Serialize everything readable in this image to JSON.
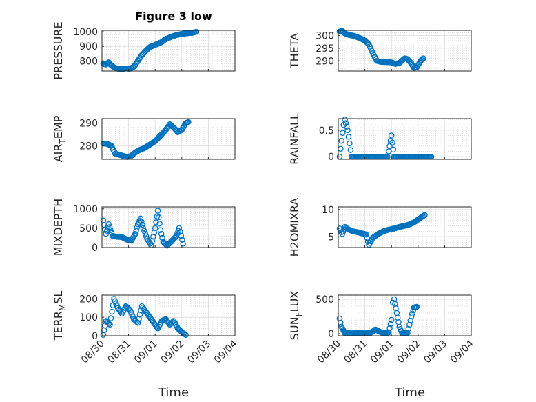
{
  "title": "Figure 3 low",
  "x_ticks": [
    "08/30",
    "08/31",
    "09/01",
    "09/02",
    "09/03",
    "09/04"
  ],
  "x_label": "Time",
  "colors": {
    "marker": "#0072bd",
    "axis": "#262626",
    "grid": "#dcdcdc"
  },
  "chart_data": [
    {
      "type": "scatter",
      "ylabel": "PRESSURE",
      "ylabel_sub": "",
      "xlim": [
        0,
        5
      ],
      "ylim": [
        730,
        1010
      ],
      "yticks": [
        800,
        900,
        1000
      ],
      "segments": [
        [
          0.05,
          780
        ],
        [
          0.15,
          775
        ],
        [
          0.25,
          790
        ],
        [
          0.35,
          770
        ],
        [
          0.45,
          755
        ],
        [
          0.6,
          745
        ],
        [
          0.75,
          742
        ],
        [
          0.9,
          748
        ],
        [
          1.05,
          745
        ],
        [
          1.2,
          760
        ],
        [
          1.35,
          800
        ],
        [
          1.5,
          840
        ],
        [
          1.65,
          870
        ],
        [
          1.8,
          895
        ],
        [
          2.0,
          910
        ],
        [
          2.2,
          925
        ],
        [
          2.4,
          950
        ],
        [
          2.6,
          965
        ],
        [
          2.8,
          978
        ],
        [
          3.0,
          985
        ],
        [
          3.2,
          990
        ],
        [
          3.4,
          993
        ],
        [
          3.55,
          1000
        ]
      ]
    },
    {
      "type": "scatter",
      "ylabel": "THETA",
      "ylabel_sub": "",
      "xlim": [
        0,
        5
      ],
      "ylim": [
        286,
        302
      ],
      "yticks": [
        290,
        295,
        300
      ],
      "segments": [
        [
          0.05,
          301.5
        ],
        [
          0.15,
          301.8
        ],
        [
          0.25,
          300.8
        ],
        [
          0.4,
          300.2
        ],
        [
          0.6,
          299.8
        ],
        [
          0.8,
          299.0
        ],
        [
          1.0,
          298.0
        ],
        [
          1.15,
          296.5
        ],
        [
          1.3,
          293
        ],
        [
          1.45,
          290
        ],
        [
          1.6,
          289.6
        ],
        [
          1.8,
          289.5
        ],
        [
          2.0,
          289.4
        ],
        [
          2.15,
          288.8
        ],
        [
          2.3,
          289.2
        ],
        [
          2.5,
          291
        ],
        [
          2.6,
          290.7
        ],
        [
          2.75,
          289
        ],
        [
          2.85,
          287.2
        ],
        [
          2.95,
          287.5
        ],
        [
          3.1,
          290
        ],
        [
          3.2,
          291
        ]
      ]
    },
    {
      "type": "scatter",
      "ylabel": "AIR",
      "ylabel_sub": "T",
      "ylabel_suffix": "EMP",
      "xlim": [
        0,
        5
      ],
      "ylim": [
        274,
        292
      ],
      "yticks": [
        280,
        290
      ],
      "segments": [
        [
          0.05,
          281
        ],
        [
          0.2,
          280.8
        ],
        [
          0.35,
          280
        ],
        [
          0.5,
          276.5
        ],
        [
          0.65,
          276
        ],
        [
          0.8,
          275.5
        ],
        [
          0.95,
          275
        ],
        [
          1.1,
          275.5
        ],
        [
          1.25,
          277
        ],
        [
          1.4,
          278
        ],
        [
          1.6,
          279
        ],
        [
          1.8,
          280.5
        ],
        [
          2.0,
          282
        ],
        [
          2.2,
          284.5
        ],
        [
          2.4,
          287
        ],
        [
          2.55,
          289.5
        ],
        [
          2.7,
          288
        ],
        [
          2.85,
          286
        ],
        [
          3.0,
          287
        ],
        [
          3.15,
          290
        ],
        [
          3.25,
          290.5
        ]
      ]
    },
    {
      "type": "scatter",
      "ylabel": "RAINFALL",
      "ylabel_sub": "",
      "xlim": [
        0,
        5
      ],
      "ylim": [
        -0.05,
        0.72
      ],
      "yticks": [
        0,
        0.5
      ],
      "segments": [
        [
          0.05,
          0
        ],
        [
          0.2,
          0.6
        ],
        [
          0.25,
          0.7
        ],
        [
          0.35,
          0.5
        ],
        [
          0.5,
          0
        ],
        [
          1.0,
          0
        ],
        [
          1.5,
          0
        ],
        [
          1.85,
          0
        ],
        [
          1.9,
          0.1
        ],
        [
          2.0,
          0.4
        ],
        [
          2.1,
          0
        ],
        [
          2.5,
          0
        ],
        [
          3.0,
          0
        ],
        [
          3.5,
          0
        ]
      ]
    },
    {
      "type": "scatter",
      "ylabel": "MIXDEPTH",
      "ylabel_sub": "",
      "xlim": [
        0,
        5
      ],
      "ylim": [
        0,
        1050
      ],
      "yticks": [
        0,
        500,
        1000
      ],
      "segments": [
        [
          0.05,
          700
        ],
        [
          0.15,
          350
        ],
        [
          0.25,
          600
        ],
        [
          0.4,
          300
        ],
        [
          0.55,
          280
        ],
        [
          0.75,
          270
        ],
        [
          0.95,
          200
        ],
        [
          1.1,
          180
        ],
        [
          1.25,
          350
        ],
        [
          1.35,
          600
        ],
        [
          1.45,
          750
        ],
        [
          1.55,
          500
        ],
        [
          1.7,
          220
        ],
        [
          1.85,
          60
        ],
        [
          2.0,
          500
        ],
        [
          2.1,
          950
        ],
        [
          2.2,
          450
        ],
        [
          2.3,
          150
        ],
        [
          2.45,
          50
        ],
        [
          2.6,
          150
        ],
        [
          2.8,
          300
        ],
        [
          2.9,
          500
        ],
        [
          3.05,
          100
        ]
      ]
    },
    {
      "type": "scatter",
      "ylabel": "H2OMIXRA",
      "ylabel_sub": "",
      "xlim": [
        0,
        5
      ],
      "ylim": [
        3,
        10.5
      ],
      "yticks": [
        5,
        10
      ],
      "segments": [
        [
          0.05,
          6.5
        ],
        [
          0.15,
          5.5
        ],
        [
          0.25,
          6.8
        ],
        [
          0.4,
          6.3
        ],
        [
          0.55,
          6.0
        ],
        [
          0.75,
          5.8
        ],
        [
          0.9,
          5.6
        ],
        [
          1.05,
          5.4
        ],
        [
          1.15,
          3.5
        ],
        [
          1.3,
          4.8
        ],
        [
          1.5,
          5.5
        ],
        [
          1.7,
          6.0
        ],
        [
          1.9,
          6.3
        ],
        [
          2.1,
          6.5
        ],
        [
          2.3,
          6.8
        ],
        [
          2.5,
          7.0
        ],
        [
          2.7,
          7.3
        ],
        [
          2.9,
          7.8
        ],
        [
          3.1,
          8.5
        ],
        [
          3.25,
          9.0
        ]
      ]
    },
    {
      "type": "scatter",
      "ylabel": "TERR",
      "ylabel_sub": "M",
      "ylabel_suffix": "SL",
      "xlim": [
        0,
        5
      ],
      "ylim": [
        0,
        220
      ],
      "yticks": [
        0,
        100,
        200
      ],
      "segments": [
        [
          0.05,
          5
        ],
        [
          0.15,
          80
        ],
        [
          0.3,
          60
        ],
        [
          0.45,
          200
        ],
        [
          0.6,
          150
        ],
        [
          0.75,
          120
        ],
        [
          0.9,
          160
        ],
        [
          1.05,
          140
        ],
        [
          1.2,
          90
        ],
        [
          1.35,
          70
        ],
        [
          1.5,
          160
        ],
        [
          1.65,
          130
        ],
        [
          1.8,
          100
        ],
        [
          1.95,
          70
        ],
        [
          2.1,
          40
        ],
        [
          2.25,
          80
        ],
        [
          2.4,
          90
        ],
        [
          2.55,
          60
        ],
        [
          2.7,
          80
        ],
        [
          2.85,
          40
        ],
        [
          3.0,
          20
        ],
        [
          3.15,
          5
        ]
      ]
    },
    {
      "type": "scatter",
      "ylabel": "SUN",
      "ylabel_sub": "F",
      "ylabel_suffix": "LUX",
      "xlim": [
        0,
        5
      ],
      "ylim": [
        -30,
        560
      ],
      "yticks": [
        0,
        500
      ],
      "segments": [
        [
          0.05,
          220
        ],
        [
          0.12,
          100
        ],
        [
          0.25,
          10
        ],
        [
          0.5,
          5
        ],
        [
          0.75,
          10
        ],
        [
          1.0,
          5
        ],
        [
          1.2,
          10
        ],
        [
          1.4,
          60
        ],
        [
          1.6,
          20
        ],
        [
          1.8,
          5
        ],
        [
          1.9,
          20
        ],
        [
          2.0,
          200
        ],
        [
          2.05,
          450
        ],
        [
          2.1,
          500
        ],
        [
          2.2,
          300
        ],
        [
          2.3,
          100
        ],
        [
          2.4,
          5
        ],
        [
          2.6,
          10
        ],
        [
          2.75,
          250
        ],
        [
          2.85,
          380
        ],
        [
          2.95,
          390
        ]
      ]
    }
  ]
}
